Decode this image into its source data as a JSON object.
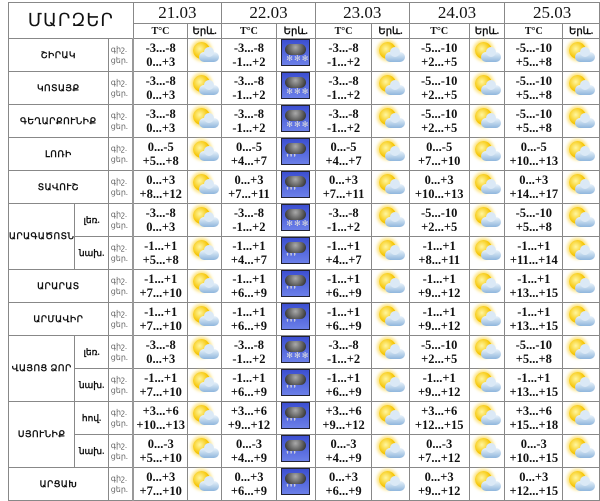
{
  "header": {
    "regions_label": "ՄԱՐԶԵՐ",
    "dates": [
      "21.03",
      "22.03",
      "23.03",
      "24.03",
      "25.03"
    ],
    "temp_label": "T°C",
    "phenomenon_label": "Երև."
  },
  "labels": {
    "night": "գիշ.",
    "day": "ցեր."
  },
  "rows": [
    {
      "region": "ՇԻՐԱԿ",
      "days": [
        [
          "-3...-8",
          "0...+3",
          "sun-cloud"
        ],
        [
          "-3...-8",
          "-1...+2",
          "snow"
        ],
        [
          "-3...-8",
          "-1...+2",
          "sun-cloud"
        ],
        [
          "-5...-10",
          "+2...+5",
          "sun-cloud"
        ],
        [
          "-5...-10",
          "+5...+8",
          "sun-cloud"
        ]
      ]
    },
    {
      "region": "ԿՈՏԱՅՔ",
      "days": [
        [
          "-3...-8",
          "0...+3",
          "sun-cloud"
        ],
        [
          "-3...-8",
          "-1...+2",
          "snow"
        ],
        [
          "-3...-8",
          "-1...+2",
          "sun-cloud"
        ],
        [
          "-5...-10",
          "+2...+5",
          "sun-cloud"
        ],
        [
          "-5...-10",
          "+5...+8",
          "sun-cloud"
        ]
      ]
    },
    {
      "region": "ԳԵՂԱՐՔՈՒՆԻՔ",
      "days": [
        [
          "-3...-8",
          "0...+3",
          "sun-cloud"
        ],
        [
          "-3...-8",
          "-1...+2",
          "snow"
        ],
        [
          "-3...-8",
          "-1...+2",
          "sun-cloud"
        ],
        [
          "-5...-10",
          "+2...+5",
          "sun-cloud"
        ],
        [
          "-5...-10",
          "+5...+8",
          "sun-cloud"
        ]
      ]
    },
    {
      "region": "ԼՈՌԻ",
      "days": [
        [
          "0...-5",
          "+5...+8",
          "sun-cloud"
        ],
        [
          "0...-5",
          "+4...+7",
          "rain"
        ],
        [
          "0...-5",
          "+4...+7",
          "sun-cloud"
        ],
        [
          "0...-5",
          "+7...+10",
          "sun-cloud"
        ],
        [
          "0...-5",
          "+10...+13",
          "sun-cloud"
        ]
      ]
    },
    {
      "region": "ՏԱՎՈՒՇ",
      "days": [
        [
          "0...+3",
          "+8...+12",
          "sun-cloud"
        ],
        [
          "0...+3",
          "+7...+11",
          "rain"
        ],
        [
          "0...+3",
          "+7...+11",
          "sun-cloud"
        ],
        [
          "0...+3",
          "+10...+13",
          "sun-cloud"
        ],
        [
          "0...+3",
          "+14...+17",
          "sun-cloud"
        ]
      ]
    },
    {
      "region": "ԱՐԱԳԱԾՈՏՆ",
      "sub": "լեռ.",
      "span": 2,
      "days": [
        [
          "-3...-8",
          "0...+3",
          "sun-cloud"
        ],
        [
          "-3...-8",
          "-1...+2",
          "snow"
        ],
        [
          "-3...-8",
          "-1...+2",
          "sun-cloud"
        ],
        [
          "-5...-10",
          "+2...+5",
          "sun-cloud"
        ],
        [
          "-5...-10",
          "+5...+8",
          "sun-cloud"
        ]
      ]
    },
    {
      "sub": "նախ.",
      "days": [
        [
          "-1...+1",
          "+5...+8",
          "sun-cloud"
        ],
        [
          "-1...+1",
          "+4...+7",
          "rain"
        ],
        [
          "-1...+1",
          "+4...+7",
          "sun-cloud"
        ],
        [
          "-1...+1",
          "+8...+11",
          "sun-cloud"
        ],
        [
          "-1...+1",
          "+11...+14",
          "sun-cloud"
        ]
      ]
    },
    {
      "region": "ԱՐԱՐԱՏ",
      "days": [
        [
          "-1...+1",
          "+7...+10",
          "sun-cloud"
        ],
        [
          "-1...+1",
          "+6...+9",
          "rain"
        ],
        [
          "-1...+1",
          "+6...+9",
          "sun-cloud"
        ],
        [
          "-1...+1",
          "+9...+12",
          "sun-cloud"
        ],
        [
          "-1...+1",
          "+13...+15",
          "sun-cloud"
        ]
      ]
    },
    {
      "region": "ԱՐՄԱՎԻՐ",
      "days": [
        [
          "-1...+1",
          "+7...+10",
          "sun-cloud"
        ],
        [
          "-1...+1",
          "+6...+9",
          "rain"
        ],
        [
          "-1...+1",
          "+6...+9",
          "sun-cloud"
        ],
        [
          "-1...+1",
          "+9...+12",
          "sun-cloud"
        ],
        [
          "-1...+1",
          "+13...+15",
          "sun-cloud"
        ]
      ]
    },
    {
      "region": "ՎԱՅՈՑ ՁՈՐ",
      "sub": "լեռ.",
      "span": 2,
      "days": [
        [
          "-3...-8",
          "0...+3",
          "sun-cloud"
        ],
        [
          "-3...-8",
          "-1...+2",
          "snow"
        ],
        [
          "-3...-8",
          "-1...+2",
          "sun-cloud"
        ],
        [
          "-5...-10",
          "+2...+5",
          "sun-cloud"
        ],
        [
          "-5...-10",
          "+5...+8",
          "sun-cloud"
        ]
      ]
    },
    {
      "sub": "նախ.",
      "days": [
        [
          "-1...+1",
          "+7...+10",
          "sun-cloud"
        ],
        [
          "-1...+1",
          "+6...+9",
          "rain"
        ],
        [
          "-1...+1",
          "+6...+9",
          "sun-cloud"
        ],
        [
          "-1...+1",
          "+9...+12",
          "sun-cloud"
        ],
        [
          "-1...+1",
          "+13...+15",
          "sun-cloud"
        ]
      ]
    },
    {
      "region": "ՍՅՈՒՆԻՔ",
      "sub": "հով.",
      "span": 2,
      "days": [
        [
          "+3...+6",
          "+10...+13",
          "sun-cloud"
        ],
        [
          "+3...+6",
          "+9...+12",
          "rain"
        ],
        [
          "+3...+6",
          "+9...+12",
          "sun-cloud"
        ],
        [
          "+3...+6",
          "+12...+15",
          "sun-cloud"
        ],
        [
          "+3...+6",
          "+15...+18",
          "sun-cloud"
        ]
      ]
    },
    {
      "sub": "նախ.",
      "days": [
        [
          "0...-3",
          "+5...+10",
          "sun-cloud"
        ],
        [
          "0...-3",
          "+4...+9",
          "rain"
        ],
        [
          "0...-3",
          "+4...+9",
          "sun-cloud"
        ],
        [
          "0...-3",
          "+7...+12",
          "sun-cloud"
        ],
        [
          "0...-3",
          "+10...+15",
          "sun-cloud"
        ]
      ]
    },
    {
      "region": "ԱՐՑԱԽ",
      "days": [
        [
          "0...+3",
          "+7...+10",
          "sun-cloud"
        ],
        [
          "0...+3",
          "+6...+9",
          "rain"
        ],
        [
          "0...+3",
          "+6...+9",
          "sun-cloud"
        ],
        [
          "0...+3",
          "+9...+12",
          "sun-cloud"
        ],
        [
          "0...+3",
          "+12...+15",
          "sun-cloud"
        ]
      ]
    }
  ]
}
